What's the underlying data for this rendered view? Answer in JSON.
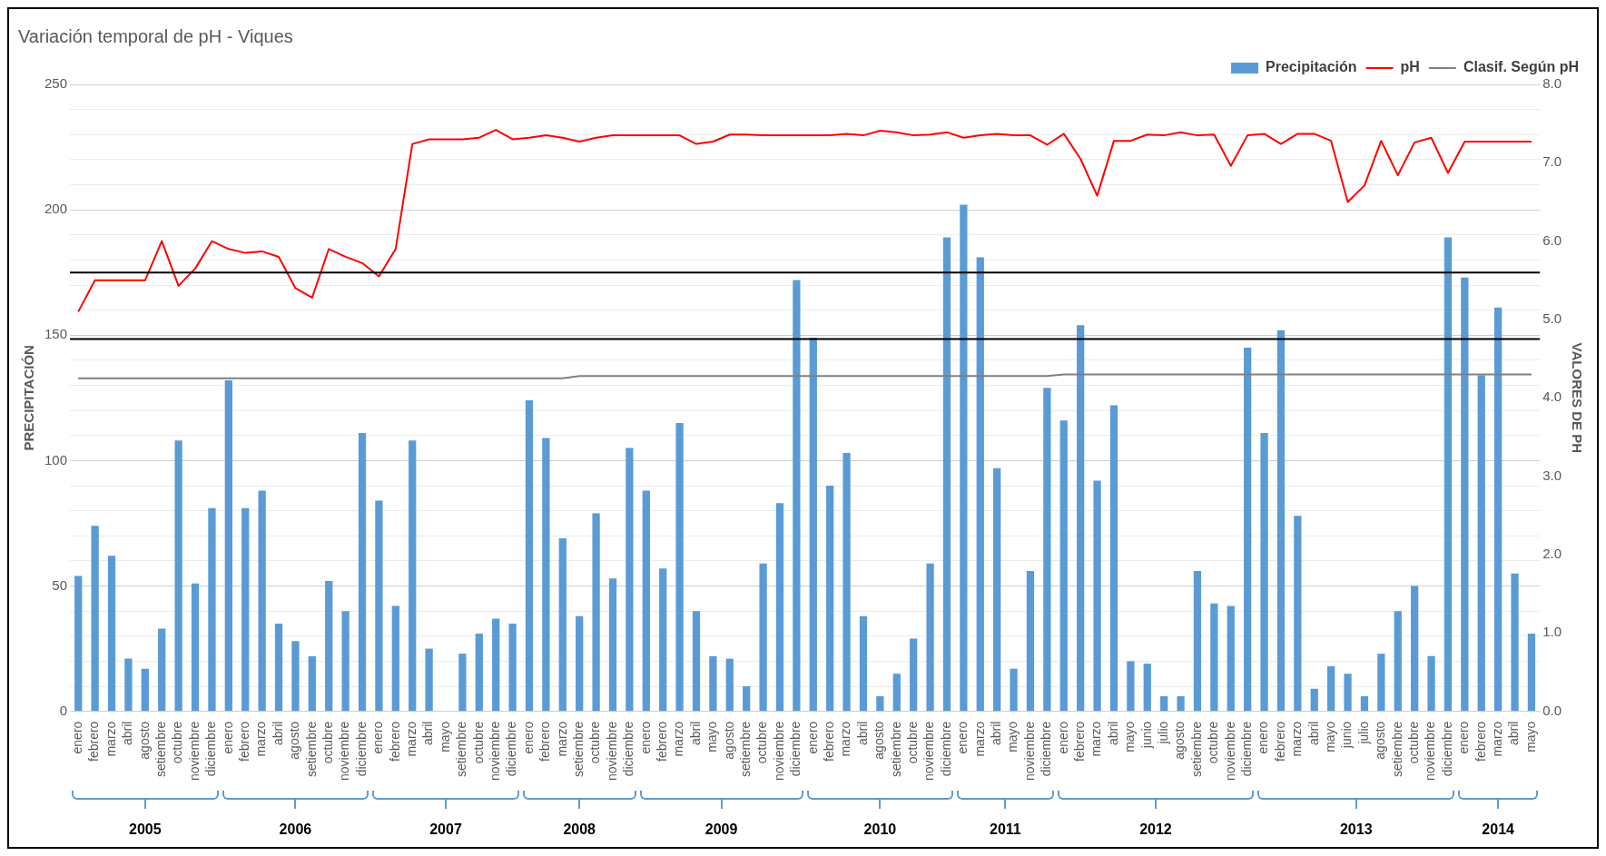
{
  "chart_data": {
    "type": "bar",
    "title": "Variación temporal de pH - Viques",
    "ylabel": "PRECIPITACIÓN",
    "y2label": "VALORES DE PH",
    "categories": [
      "enero",
      "febrero",
      "marzo",
      "abril",
      "agosto",
      "setiembre",
      "octubre",
      "noviembre",
      "diciembre",
      "enero",
      "febrero",
      "marzo",
      "abril",
      "agosto",
      "setiembre",
      "octubre",
      "noviembre",
      "diciembre",
      "enero",
      "febrero",
      "marzo",
      "abril",
      "mayo",
      "setiembre",
      "octubre",
      "noviembre",
      "diciembre",
      "enero",
      "febrero",
      "marzo",
      "setiembre",
      "octubre",
      "noviembre",
      "diciembre",
      "enero",
      "febrero",
      "marzo",
      "abril",
      "mayo",
      "agosto",
      "setiembre",
      "octubre",
      "noviembre",
      "diciembre",
      "enero",
      "febrero",
      "marzo",
      "abril",
      "agosto",
      "setiembre",
      "octubre",
      "noviembre",
      "diciembre",
      "enero",
      "marzo",
      "abril",
      "mayo",
      "noviembre",
      "diciembre",
      "enero",
      "febrero",
      "marzo",
      "abril",
      "mayo",
      "junio",
      "julio",
      "agosto",
      "setiembre",
      "octubre",
      "noviembre",
      "diciembre",
      "enero",
      "febrero",
      "marzo",
      "abril",
      "mayo",
      "junio",
      "julio",
      "agosto",
      "setiembre",
      "octubre",
      "noviembre",
      "diciembre",
      "enero",
      "febrero",
      "marzo",
      "abril",
      "mayo"
    ],
    "series": [
      {
        "name": "Precipitación",
        "color": "#5b9bd5",
        "values": [
          54,
          74,
          62,
          21,
          17,
          33,
          108,
          51,
          81,
          132,
          81,
          88,
          35,
          28,
          22,
          52,
          40,
          111,
          84,
          42,
          108,
          25,
          0,
          23,
          31,
          37,
          35,
          124,
          109,
          69,
          38,
          79,
          53,
          105,
          88,
          57,
          115,
          40,
          22,
          21,
          10,
          59,
          83,
          172,
          149,
          90,
          103,
          38,
          6,
          15,
          29,
          59,
          189,
          202,
          181,
          97,
          17,
          56,
          129,
          116,
          154,
          92,
          122,
          20,
          19,
          6,
          6,
          56,
          43,
          42,
          145,
          111,
          152,
          78,
          9,
          18,
          15,
          6,
          23,
          40,
          50,
          22,
          189,
          173,
          134,
          161,
          55,
          31
        ]
      },
      {
        "name": "pH",
        "type": "line",
        "axis": "y2",
        "color": "#ff0000",
        "values": [
          5.1,
          5.5,
          5.5,
          5.5,
          5.5,
          6.0,
          5.43,
          5.65,
          6.0,
          5.9,
          5.85,
          5.87,
          5.8,
          5.4,
          5.28,
          5.9,
          5.8,
          5.72,
          5.55,
          5.9,
          7.24,
          7.3,
          7.3,
          7.3,
          7.32,
          7.42,
          7.3,
          7.32,
          7.35,
          7.32,
          7.27,
          7.32,
          7.35,
          7.35,
          7.35,
          7.35,
          7.35,
          7.24,
          7.27,
          7.36,
          7.36,
          7.35,
          7.35,
          7.35,
          7.35,
          7.35,
          7.37,
          7.35,
          7.41,
          7.39,
          7.35,
          7.36,
          7.39,
          7.32,
          7.35,
          7.37,
          7.35,
          7.35,
          7.23,
          7.37,
          7.05,
          6.58,
          7.28,
          7.28,
          7.36,
          7.35,
          7.39,
          7.35,
          7.36,
          6.96,
          7.35,
          7.37,
          7.24,
          7.37,
          7.37,
          7.28,
          6.5,
          6.71,
          7.28,
          6.84,
          7.26,
          7.32,
          6.87,
          7.27,
          7.27,
          7.27,
          7.27,
          7.27
        ]
      },
      {
        "name": "Clasif. Según pH",
        "type": "line",
        "axis": "y2",
        "color": "#808080",
        "values": [
          4.25,
          4.25,
          4.25,
          4.25,
          4.25,
          4.25,
          4.25,
          4.25,
          4.25,
          4.25,
          4.25,
          4.25,
          4.25,
          4.25,
          4.25,
          4.25,
          4.25,
          4.25,
          4.25,
          4.25,
          4.25,
          4.25,
          4.25,
          4.25,
          4.25,
          4.25,
          4.25,
          4.25,
          4.25,
          4.25,
          4.28,
          4.28,
          4.28,
          4.28,
          4.28,
          4.28,
          4.28,
          4.28,
          4.28,
          4.28,
          4.28,
          4.28,
          4.28,
          4.28,
          4.28,
          4.28,
          4.28,
          4.28,
          4.28,
          4.28,
          4.28,
          4.28,
          4.28,
          4.28,
          4.28,
          4.28,
          4.28,
          4.28,
          4.28,
          4.3,
          4.3,
          4.3,
          4.3,
          4.3,
          4.3,
          4.3,
          4.3,
          4.3,
          4.3,
          4.3,
          4.3,
          4.3,
          4.3,
          4.3,
          4.3,
          4.3,
          4.3,
          4.3,
          4.3,
          4.3,
          4.3,
          4.3,
          4.3,
          4.3,
          4.3,
          4.3,
          4.3,
          4.3
        ]
      }
    ],
    "ylim": [
      0,
      250
    ],
    "yticks": [
      0,
      {
        "value": 10,
        "label": null
      },
      {
        "value": 20,
        "label": null
      },
      {
        "value": 30,
        "label": null
      },
      {
        "value": 40,
        "label": null
      },
      50,
      {
        "value": 60,
        "label": null
      },
      {
        "value": 70,
        "label": null
      },
      {
        "value": 80,
        "label": null
      },
      {
        "value": 90,
        "label": null
      },
      100,
      {
        "value": 110,
        "label": null
      },
      {
        "value": 120,
        "label": null
      },
      {
        "value": 130,
        "label": null
      },
      {
        "value": 140,
        "label": null
      },
      150,
      {
        "value": 160,
        "label": null
      },
      {
        "value": 170,
        "label": null
      },
      {
        "value": 180,
        "label": null
      },
      {
        "value": 190,
        "label": null
      },
      200,
      {
        "value": 210,
        "label": null
      },
      {
        "value": 220,
        "label": null
      },
      {
        "value": 230,
        "label": null
      },
      {
        "value": 240,
        "label": null
      },
      250
    ],
    "y2lim": [
      0,
      8
    ],
    "y2ticks": [
      {
        "value": 0,
        "label": "0.0"
      },
      {
        "value": 1,
        "label": "1.0"
      },
      {
        "value": 2,
        "label": "2.0"
      },
      {
        "value": 3,
        "label": "3.0"
      },
      {
        "value": 4,
        "label": "4.0"
      },
      {
        "value": 5,
        "label": "5.0"
      },
      {
        "value": 6,
        "label": "6.0"
      },
      {
        "value": 7,
        "label": "7.0"
      },
      {
        "value": 8,
        "label": "8.0"
      }
    ],
    "ref_lines": [
      {
        "axis": "y2",
        "value": 5.6,
        "color": "#000000"
      },
      {
        "axis": "y2",
        "value": 4.75,
        "color": "#000000"
      }
    ],
    "annotations": [
      "2005",
      "2006",
      "2007",
      "2008",
      "2009",
      "2010",
      "2011",
      "2012",
      "2013",
      "2014"
    ],
    "grid": "y",
    "legend": "top right",
    "marker": "none",
    "line_style": "solid"
  }
}
